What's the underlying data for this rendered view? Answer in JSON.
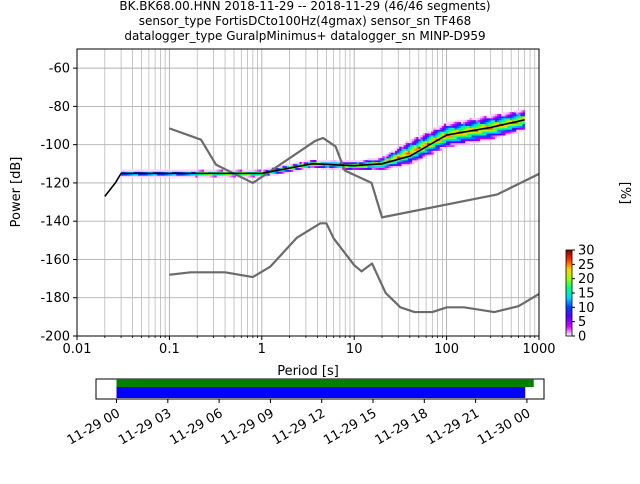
{
  "title_lines": [
    "BK.BK68.00.HNN   2018-11-29 -- 2018-11-29  (46/46 segments)",
    "sensor_type FortisDCto100Hz(4gmax) sensor_sn TF468",
    "datalogger_type GuralpMinimus+ datalogger_sn MINP-D959"
  ],
  "colorbar": {
    "label": "[%]",
    "ticks": [
      "0",
      "5",
      "10",
      "15",
      "20",
      "25",
      "30"
    ],
    "range": [
      0,
      30
    ],
    "stops": [
      "#ffffff",
      "#d000ff",
      "#5c00ff",
      "#0040ff",
      "#00d8ff",
      "#00ff80",
      "#a0ff00",
      "#ffd000",
      "#ff3000",
      "#800000"
    ]
  },
  "colors": {
    "noise_model": "#6b6b6b",
    "mode_line": "#000000",
    "min_line": "#000000",
    "data_available": "#008000",
    "data_used": "#0000ff"
  },
  "chart_data": [
    {
      "type": "line",
      "title": "BK.BK68.00.HNN   2018-11-29 -- 2018-11-29  (46/46 segments)",
      "xlabel": "Period [s]",
      "ylabel": "Power [dB]",
      "xscale": "log",
      "xlim": [
        0.01,
        1000
      ],
      "ylim": [
        -200,
        -50
      ],
      "x_tick_labels": [
        "0.01",
        "0.1",
        "1",
        "10",
        "100",
        "1000"
      ],
      "y_tick_labels": [
        "-200",
        "-180",
        "-160",
        "-140",
        "-120",
        "-100",
        "-80",
        "-60"
      ],
      "grid": true,
      "series": [
        {
          "role": "high-noise-model",
          "points": [
            [
              0.1,
              -91.5
            ],
            [
              0.22,
              -97.4
            ],
            [
              0.32,
              -110.5
            ],
            [
              0.8,
              -120
            ],
            [
              3.8,
              -98
            ],
            [
              4.6,
              -96.5
            ],
            [
              6.3,
              -101
            ],
            [
              7.9,
              -113.5
            ],
            [
              15.4,
              -120
            ],
            [
              20,
              -138
            ],
            [
              354,
              -126
            ],
            [
              10000,
              -91.5
            ]
          ]
        },
        {
          "role": "low-noise-model",
          "points": [
            [
              0.1,
              -168
            ],
            [
              0.17,
              -166.7
            ],
            [
              0.4,
              -166.7
            ],
            [
              0.8,
              -169.2
            ],
            [
              1.24,
              -163.7
            ],
            [
              2.4,
              -148.6
            ],
            [
              4.3,
              -141.1
            ],
            [
              5,
              -141.1
            ],
            [
              6,
              -149
            ],
            [
              10,
              -163
            ],
            [
              12,
              -166.2
            ],
            [
              15.6,
              -162.1
            ],
            [
              21.9,
              -177.5
            ],
            [
              31.6,
              -185
            ],
            [
              45,
              -187.5
            ],
            [
              70,
              -187.5
            ],
            [
              101,
              -185
            ],
            [
              154,
              -185
            ],
            [
              328,
              -187.5
            ],
            [
              600,
              -184.4
            ],
            [
              1000,
              -178
            ]
          ]
        },
        {
          "role": "mode",
          "points": [
            [
              0.02,
              -127
            ],
            [
              0.026,
              -120
            ],
            [
              0.03,
              -115
            ],
            [
              0.1,
              -115
            ],
            [
              1,
              -115
            ],
            [
              3.5,
              -110
            ],
            [
              10,
              -111
            ],
            [
              20,
              -110
            ],
            [
              40,
              -106
            ],
            [
              100,
              -95
            ],
            [
              300,
              -91
            ],
            [
              700,
              -87
            ]
          ]
        }
      ],
      "density_band": {
        "period_range": [
          0.03,
          700
        ],
        "max_percent": 30,
        "center": [
          [
            0.03,
            -115
          ],
          [
            1,
            -115
          ],
          [
            3.5,
            -110
          ],
          [
            10,
            -111
          ],
          [
            20,
            -110
          ],
          [
            40,
            -104
          ],
          [
            100,
            -95
          ],
          [
            300,
            -91
          ],
          [
            700,
            -87
          ]
        ],
        "half_width_db": [
          [
            0.03,
            1.5
          ],
          [
            1,
            1.5
          ],
          [
            10,
            2
          ],
          [
            20,
            3
          ],
          [
            40,
            6
          ],
          [
            100,
            6
          ],
          [
            300,
            6
          ],
          [
            700,
            5
          ]
        ]
      }
    },
    {
      "type": "timeline",
      "x_tick_labels": [
        "11-29 00",
        "11-29 03",
        "11-29 06",
        "11-29 09",
        "11-29 12",
        "11-29 15",
        "11-29 18",
        "11-29 21",
        "11-30 00"
      ],
      "xlim_hours": [
        -1.2,
        25
      ],
      "bars": [
        {
          "role": "data-available",
          "start_hours": 0,
          "end_hours": 24.4
        },
        {
          "role": "data-used",
          "start_hours": 0,
          "end_hours": 23.9
        }
      ]
    }
  ]
}
